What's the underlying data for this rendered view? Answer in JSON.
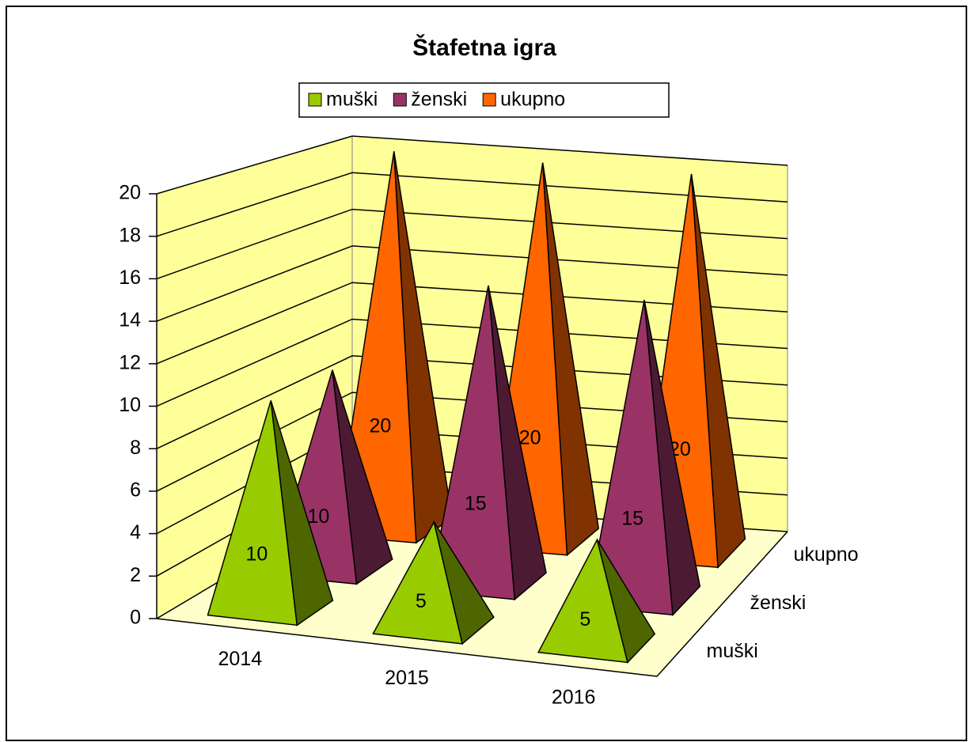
{
  "chart_data": {
    "type": "pyramid3d",
    "title": "Štafetna igra",
    "categories": [
      "2014",
      "2015",
      "2016"
    ],
    "series": [
      {
        "name": "muški",
        "color": "#99cc00",
        "values": [
          10,
          5,
          5
        ]
      },
      {
        "name": "ženski",
        "color": "#993366",
        "values": [
          10,
          15,
          15
        ]
      },
      {
        "name": "ukupno",
        "color": "#ff6600",
        "values": [
          20,
          20,
          20
        ]
      }
    ],
    "ylim": [
      0,
      20
    ],
    "yticks": [
      0,
      2,
      4,
      6,
      8,
      10,
      12,
      14,
      16,
      18,
      20
    ],
    "grid": true,
    "legend": "top"
  }
}
